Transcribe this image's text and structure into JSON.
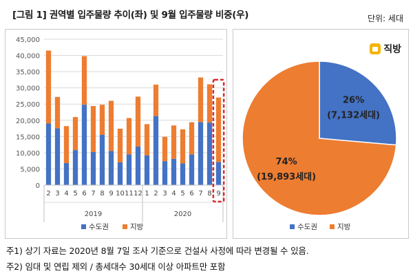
{
  "title": "[그림 1] 권역별 입주물량 추이(좌) 및 9월 입주물량 비중(우)",
  "unit_label": "단위: 세대",
  "logo_text": "직방",
  "colors": {
    "capital": "#4472c4",
    "local": "#ed7d31",
    "highlight": "#d9262c"
  },
  "legend": {
    "capital": "수도권",
    "local": "지방"
  },
  "chart_data": [
    {
      "type": "bar",
      "stacked": true,
      "categories": [
        "2",
        "3",
        "4",
        "5",
        "6",
        "7",
        "8",
        "9",
        "10",
        "11",
        "12",
        "1",
        "2",
        "3",
        "4",
        "5",
        "6",
        "7",
        "8",
        "9"
      ],
      "year_groups": [
        {
          "label": "2019",
          "start": 0,
          "end": 10
        },
        {
          "label": "2020",
          "start": 11,
          "end": 19
        }
      ],
      "series": [
        {
          "name": "수도권",
          "values": [
            19000,
            17500,
            6800,
            10800,
            24800,
            10200,
            15500,
            10500,
            7000,
            9500,
            11900,
            9200,
            21300,
            7400,
            8100,
            6700,
            9500,
            19400,
            19300,
            7132
          ]
        },
        {
          "name": "지방",
          "values": [
            22500,
            9700,
            11400,
            10200,
            15000,
            14200,
            9300,
            15500,
            10400,
            11200,
            15400,
            9600,
            9700,
            7500,
            10300,
            10500,
            9900,
            13800,
            11800,
            19893
          ]
        }
      ],
      "ylim": [
        0,
        45000
      ],
      "yticks": [
        "0",
        "5,000",
        "10,000",
        "15,000",
        "20,000",
        "25,000",
        "30,000",
        "35,000",
        "40,000",
        "45,000"
      ],
      "grid": true,
      "legend_position": "bottom",
      "highlight_last": true
    },
    {
      "type": "pie",
      "labels": [
        "수도권",
        "지방"
      ],
      "values": [
        7132,
        19893
      ],
      "slice_labels": [
        {
          "pct": "26%",
          "count": "(7,132세대)"
        },
        {
          "pct": "74%",
          "count": "(19,893세대)"
        }
      ],
      "legend_position": "bottom"
    }
  ],
  "notes": [
    "주1) 상기 자료는 2020년 8월 7일 조사 기준으로 건설사 사정에 따라 변경될 수 있음.",
    "주2) 임대 및 연립 제외 / 총세대수 30세대 이상 아파트만 포함"
  ]
}
